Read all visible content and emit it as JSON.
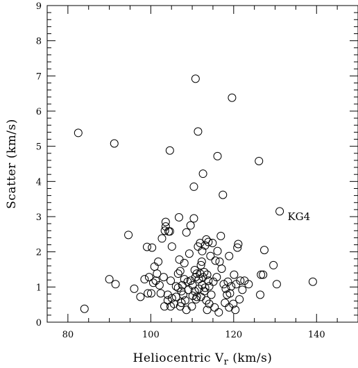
{
  "chart_data": {
    "type": "scatter",
    "xlabel_main": "Heliocentric V",
    "xlabel_sub": "r",
    "xlabel_unit": " (km/s)",
    "ylabel": "Scatter  (km/s)",
    "xlim": [
      75,
      150
    ],
    "ylim": [
      0,
      9
    ],
    "xticks": [
      80,
      100,
      120,
      140
    ],
    "yticks": [
      0,
      1,
      2,
      3,
      4,
      5,
      6,
      7,
      8,
      9
    ],
    "grid": false,
    "annotations": [
      {
        "text": "KG4",
        "x": 133,
        "y": 3.0
      }
    ],
    "points": [
      [
        82.5,
        5.38
      ],
      [
        84,
        0.38
      ],
      [
        90,
        1.22
      ],
      [
        91.5,
        1.08
      ],
      [
        91.2,
        5.08
      ],
      [
        94.6,
        2.48
      ],
      [
        96,
        0.95
      ],
      [
        97.5,
        0.72
      ],
      [
        98.5,
        1.22
      ],
      [
        99.1,
        2.14
      ],
      [
        99.3,
        0.82
      ],
      [
        99.6,
        1.28
      ],
      [
        100.1,
        0.82
      ],
      [
        100.3,
        2.12
      ],
      [
        100.6,
        1.12
      ],
      [
        100.9,
        1.58
      ],
      [
        101.2,
        1.18
      ],
      [
        101.5,
        1.38
      ],
      [
        101.8,
        1.72
      ],
      [
        102.1,
        1.05
      ],
      [
        102.4,
        0.82
      ],
      [
        102.7,
        2.38
      ],
      [
        103.1,
        1.28
      ],
      [
        103.3,
        0.45
      ],
      [
        103.4,
        2.6
      ],
      [
        103.6,
        2.72
      ],
      [
        103.6,
        2.85
      ],
      [
        104.1,
        0.62
      ],
      [
        104.1,
        0.78
      ],
      [
        104.3,
        2.58
      ],
      [
        104.6,
        2.58
      ],
      [
        104.6,
        4.88
      ],
      [
        104.8,
        0.45
      ],
      [
        104.8,
        1.18
      ],
      [
        105.1,
        2.15
      ],
      [
        105.1,
        0.68
      ],
      [
        105.6,
        0.52
      ],
      [
        106.1,
        1.02
      ],
      [
        106.1,
        0.72
      ],
      [
        106.6,
        1.38
      ],
      [
        106.6,
        0.98
      ],
      [
        106.8,
        2.98
      ],
      [
        107.1,
        0.45
      ],
      [
        107.1,
        1.45
      ],
      [
        107.4,
        0.88
      ],
      [
        107.4,
        0.55
      ],
      [
        107.6,
        1.05
      ],
      [
        107.8,
        0.78
      ],
      [
        108.1,
        1.68
      ],
      [
        108.1,
        1.22
      ],
      [
        108.3,
        0.62
      ],
      [
        108.6,
        2.55
      ],
      [
        108.6,
        0.35
      ],
      [
        108.9,
        1.15
      ],
      [
        109.1,
        0.92
      ],
      [
        109.3,
        1.95
      ],
      [
        109.6,
        2.75
      ],
      [
        109.6,
        1.18
      ],
      [
        110.1,
        1.05
      ],
      [
        110.1,
        0.75
      ],
      [
        110.4,
        3.85
      ],
      [
        110.4,
        2.95
      ],
      [
        110.6,
        1.48
      ],
      [
        110.6,
        0.88
      ],
      [
        110.8,
        6.92
      ],
      [
        110.8,
        1.28
      ],
      [
        111.1,
        1.38
      ],
      [
        111.1,
        0.72
      ],
      [
        111.4,
        5.42
      ],
      [
        111.4,
        2.15
      ],
      [
        111.6,
        1.22
      ],
      [
        111.6,
        0.95
      ],
      [
        111.9,
        1.38
      ],
      [
        111.9,
        2.25
      ],
      [
        112.1,
        1.62
      ],
      [
        112.1,
        0.72
      ],
      [
        112.4,
        1.05
      ],
      [
        112.4,
        2.02
      ],
      [
        112.6,
        4.22
      ],
      [
        112.6,
        1.28
      ],
      [
        112.9,
        0.88
      ],
      [
        112.9,
        1.42
      ],
      [
        113.1,
        2.18
      ],
      [
        113.1,
        0.98
      ],
      [
        113.4,
        2.35
      ],
      [
        113.4,
        0.62
      ],
      [
        113.6,
        1.35
      ],
      [
        113.6,
        0.35
      ],
      [
        113.9,
        1.18
      ],
      [
        113.9,
        2.28
      ],
      [
        114.1,
        1.02
      ],
      [
        114.1,
        0.52
      ],
      [
        114.4,
        1.88
      ],
      [
        114.6,
        0.78
      ],
      [
        114.9,
        2.25
      ],
      [
        115.1,
        1.15
      ],
      [
        115.4,
        0.42
      ],
      [
        115.6,
        1.75
      ],
      [
        116.1,
        4.72
      ],
      [
        116.1,
        2.02
      ],
      [
        116.4,
        0.28
      ],
      [
        116.6,
        1.72
      ],
      [
        116.9,
        2.45
      ],
      [
        117.1,
        1.52
      ],
      [
        117.4,
        3.62
      ],
      [
        117.6,
        1.08
      ],
      [
        117.9,
        0.55
      ],
      [
        118.1,
        0.95
      ],
      [
        118.4,
        0.78
      ],
      [
        118.6,
        1.15
      ],
      [
        118.9,
        0.42
      ],
      [
        119.1,
        0.82
      ],
      [
        119.4,
        1.02
      ],
      [
        119.6,
        6.38
      ],
      [
        119.9,
        0.52
      ],
      [
        120.1,
        1.35
      ],
      [
        120.4,
        0.35
      ],
      [
        120.6,
        1.08
      ],
      [
        120.9,
        2.12
      ],
      [
        121.1,
        2.22
      ],
      [
        121.4,
        0.65
      ],
      [
        121.6,
        1.18
      ],
      [
        122.1,
        0.92
      ],
      [
        122.6,
        1.18
      ],
      [
        123.6,
        1.08
      ],
      [
        126.1,
        4.58
      ],
      [
        126.4,
        0.78
      ],
      [
        126.6,
        1.35
      ],
      [
        127.1,
        1.35
      ],
      [
        127.4,
        2.05
      ],
      [
        129.6,
        1.62
      ],
      [
        130.4,
        1.08
      ],
      [
        131.1,
        3.15
      ],
      [
        139.1,
        1.15
      ],
      [
        110.9,
        0.65
      ],
      [
        112.3,
        1.72
      ],
      [
        109.9,
        0.45
      ],
      [
        115.9,
        1.28
      ],
      [
        118.9,
        1.88
      ],
      [
        106.9,
        1.78
      ]
    ]
  }
}
